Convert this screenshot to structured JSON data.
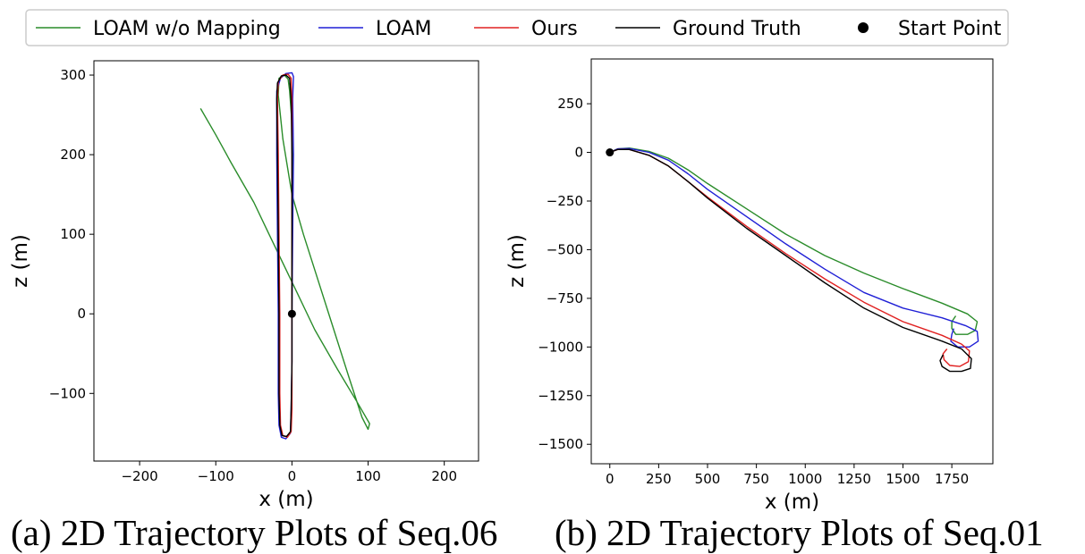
{
  "legend": {
    "placement": "top-center",
    "entries": [
      {
        "label": "LOAM w/o Mapping",
        "color": "#2a8c2a",
        "kind": "line"
      },
      {
        "label": "LOAM",
        "color": "#1f1fd6",
        "kind": "line"
      },
      {
        "label": "Ours",
        "color": "#e02020",
        "kind": "line"
      },
      {
        "label": "Ground Truth",
        "color": "#000000",
        "kind": "line"
      },
      {
        "label": "Start Point",
        "color": "#000000",
        "kind": "marker"
      }
    ]
  },
  "captions": {
    "a": "(a) 2D Trajectory Plots of Seq.06",
    "b": "(b) 2D Trajectory Plots of Seq.01"
  },
  "chart_data": [
    {
      "type": "line",
      "xlabel": "x (m)",
      "ylabel": "z (m)",
      "xlim": [
        -260,
        245
      ],
      "ylim": [
        -185,
        318
      ],
      "xticks": [
        -200,
        -100,
        0,
        100,
        200
      ],
      "yticks": [
        -100,
        0,
        100,
        200,
        300
      ],
      "grid": false,
      "series": [
        {
          "name": "LOAM w/o Mapping",
          "color": "#2a8c2a",
          "points": [
            [
              0,
              0
            ],
            [
              0,
              80
            ],
            [
              1,
              160
            ],
            [
              0,
              240
            ],
            [
              -3,
              280
            ],
            [
              -5,
              295
            ],
            [
              -10,
              300
            ],
            [
              -17,
              296
            ],
            [
              -18,
              275
            ],
            [
              -12,
              220
            ],
            [
              0,
              150
            ],
            [
              15,
              100
            ],
            [
              35,
              40
            ],
            [
              55,
              -20
            ],
            [
              75,
              -80
            ],
            [
              92,
              -130
            ],
            [
              100,
              -145
            ],
            [
              102,
              -138
            ],
            [
              85,
              -110
            ],
            [
              60,
              -70
            ],
            [
              30,
              -20
            ],
            [
              0,
              40
            ],
            [
              -30,
              100
            ],
            [
              -50,
              140
            ],
            [
              -80,
              190
            ],
            [
              -100,
              225
            ],
            [
              -120,
              258
            ]
          ]
        },
        {
          "name": "LOAM",
          "color": "#1f1fd6",
          "points": [
            [
              0,
              0
            ],
            [
              1,
              100
            ],
            [
              2,
              200
            ],
            [
              1,
              270
            ],
            [
              2,
              298
            ],
            [
              0,
              303
            ],
            [
              -8,
              302
            ],
            [
              -15,
              296
            ],
            [
              -20,
              280
            ],
            [
              -20,
              200
            ],
            [
              -19,
              100
            ],
            [
              -18,
              0
            ],
            [
              -18,
              -100
            ],
            [
              -17,
              -140
            ],
            [
              -14,
              -155
            ],
            [
              -8,
              -157
            ],
            [
              -2,
              -150
            ],
            [
              -1,
              -120
            ],
            [
              0,
              -60
            ],
            [
              0,
              0
            ]
          ]
        },
        {
          "name": "Ours",
          "color": "#e02020",
          "points": [
            [
              0,
              0
            ],
            [
              0,
              100
            ],
            [
              0,
              200
            ],
            [
              0,
              270
            ],
            [
              -1,
              296
            ],
            [
              -5,
              301
            ],
            [
              -12,
              300
            ],
            [
              -18,
              292
            ],
            [
              -19,
              270
            ],
            [
              -18,
              200
            ],
            [
              -17,
              100
            ],
            [
              -16,
              0
            ],
            [
              -16,
              -100
            ],
            [
              -15,
              -140
            ],
            [
              -12,
              -153
            ],
            [
              -6,
              -155
            ],
            [
              -1,
              -148
            ],
            [
              0,
              -120
            ],
            [
              0,
              -60
            ],
            [
              0,
              0
            ]
          ]
        },
        {
          "name": "Ground Truth",
          "color": "#000000",
          "points": [
            [
              0,
              0
            ],
            [
              0,
              100
            ],
            [
              0,
              200
            ],
            [
              -1,
              270
            ],
            [
              -3,
              296
            ],
            [
              -8,
              300
            ],
            [
              -14,
              299
            ],
            [
              -19,
              290
            ],
            [
              -20,
              270
            ],
            [
              -19,
              200
            ],
            [
              -18,
              100
            ],
            [
              -17,
              0
            ],
            [
              -17,
              -100
            ],
            [
              -16,
              -140
            ],
            [
              -13,
              -153
            ],
            [
              -7,
              -154
            ],
            [
              -2,
              -148
            ],
            [
              -1,
              -120
            ],
            [
              0,
              -60
            ],
            [
              0,
              0
            ]
          ]
        },
        {
          "name": "Start Point",
          "color": "#000000",
          "kind": "marker",
          "points": [
            [
              0,
              0
            ]
          ]
        }
      ]
    },
    {
      "type": "line",
      "xlabel": "x (m)",
      "ylabel": "z (m)",
      "xlim": [
        -95,
        1960
      ],
      "ylim": [
        -1600,
        480
      ],
      "xticks": [
        0,
        250,
        500,
        750,
        1000,
        1250,
        1500,
        1750
      ],
      "yticks": [
        250,
        0,
        -250,
        -500,
        -750,
        -1000,
        -1250,
        -1500
      ],
      "grid": false,
      "series": [
        {
          "name": "LOAM w/o Mapping",
          "color": "#2a8c2a",
          "points": [
            [
              0,
              0
            ],
            [
              40,
              18
            ],
            [
              100,
              22
            ],
            [
              200,
              5
            ],
            [
              300,
              -30
            ],
            [
              400,
              -90
            ],
            [
              500,
              -160
            ],
            [
              700,
              -290
            ],
            [
              900,
              -420
            ],
            [
              1100,
              -530
            ],
            [
              1300,
              -620
            ],
            [
              1500,
              -700
            ],
            [
              1700,
              -775
            ],
            [
              1830,
              -830
            ],
            [
              1880,
              -870
            ],
            [
              1870,
              -915
            ],
            [
              1830,
              -935
            ],
            [
              1770,
              -935
            ],
            [
              1750,
              -905
            ],
            [
              1750,
              -870
            ],
            [
              1770,
              -840
            ]
          ]
        },
        {
          "name": "LOAM",
          "color": "#1f1fd6",
          "points": [
            [
              0,
              0
            ],
            [
              40,
              18
            ],
            [
              100,
              20
            ],
            [
              200,
              0
            ],
            [
              300,
              -40
            ],
            [
              400,
              -110
            ],
            [
              500,
              -190
            ],
            [
              700,
              -330
            ],
            [
              900,
              -470
            ],
            [
              1100,
              -600
            ],
            [
              1300,
              -720
            ],
            [
              1500,
              -800
            ],
            [
              1700,
              -850
            ],
            [
              1820,
              -890
            ],
            [
              1880,
              -920
            ],
            [
              1885,
              -970
            ],
            [
              1840,
              -1000
            ],
            [
              1780,
              -1000
            ],
            [
              1745,
              -970
            ],
            [
              1750,
              -935
            ],
            [
              1760,
              -905
            ]
          ]
        },
        {
          "name": "Ours",
          "color": "#e02020",
          "points": [
            [
              0,
              0
            ],
            [
              40,
              15
            ],
            [
              100,
              15
            ],
            [
              200,
              -15
            ],
            [
              300,
              -70
            ],
            [
              400,
              -150
            ],
            [
              500,
              -230
            ],
            [
              700,
              -380
            ],
            [
              900,
              -520
            ],
            [
              1100,
              -650
            ],
            [
              1300,
              -770
            ],
            [
              1500,
              -870
            ],
            [
              1700,
              -940
            ],
            [
              1800,
              -985
            ],
            [
              1840,
              -1020
            ],
            [
              1835,
              -1075
            ],
            [
              1790,
              -1100
            ],
            [
              1740,
              -1095
            ],
            [
              1710,
              -1065
            ],
            [
              1705,
              -1035
            ],
            [
              1725,
              -1010
            ]
          ]
        },
        {
          "name": "Ground Truth",
          "color": "#000000",
          "points": [
            [
              0,
              0
            ],
            [
              40,
              15
            ],
            [
              100,
              15
            ],
            [
              200,
              -15
            ],
            [
              300,
              -70
            ],
            [
              400,
              -150
            ],
            [
              500,
              -235
            ],
            [
              700,
              -390
            ],
            [
              900,
              -530
            ],
            [
              1100,
              -670
            ],
            [
              1300,
              -800
            ],
            [
              1500,
              -900
            ],
            [
              1700,
              -970
            ],
            [
              1800,
              -1010
            ],
            [
              1850,
              -1060
            ],
            [
              1845,
              -1110
            ],
            [
              1800,
              -1125
            ],
            [
              1740,
              -1125
            ],
            [
              1700,
              -1100
            ],
            [
              1690,
              -1070
            ],
            [
              1705,
              -1040
            ]
          ]
        },
        {
          "name": "Start Point",
          "color": "#000000",
          "kind": "marker",
          "points": [
            [
              0,
              0
            ]
          ]
        }
      ]
    }
  ]
}
